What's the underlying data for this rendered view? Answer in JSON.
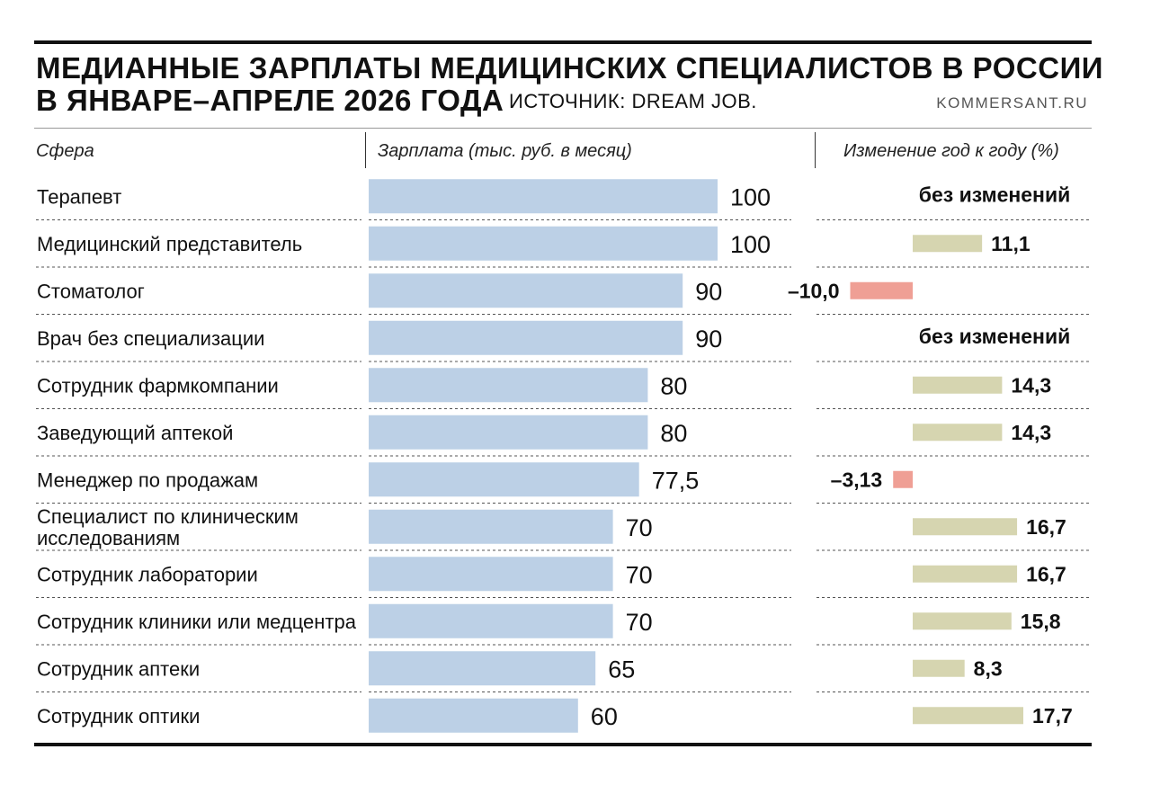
{
  "header": {
    "title_line1": "МЕДИАННЫЕ ЗАРПЛАТЫ МЕДИЦИНСКИХ СПЕЦИАЛИСТОВ В РОССИИ",
    "title_line2": "В ЯНВАРЕ–АПРЕЛЕ 2026 ГОДА",
    "source": "ИСТОЧНИК: DREAM JOB.",
    "brand": "KOMMERSANT.RU"
  },
  "columns": {
    "sphere": "Сфера",
    "salary": "Зарплата (тыс. руб. в месяц)",
    "change": "Изменение год к году (%)"
  },
  "colors": {
    "salary_bar": "#bcd0e6",
    "positive_change": "#d6d5b0",
    "negative_change": "#ef9f95",
    "row_divider": "#555555"
  },
  "chart_data": {
    "type": "bar",
    "orientation": "horizontal",
    "title": "МЕДИАННЫЕ ЗАРПЛАТЫ МЕДИЦИНСКИХ СПЕЦИАЛИСТОВ В РОССИИ В ЯНВАРЕ–АПРЕЛЕ 2026 ГОДА",
    "categories": [
      [
        "Терапевт"
      ],
      [
        "Медицинский представитель"
      ],
      [
        "Стоматолог"
      ],
      [
        "Врач без специализации"
      ],
      [
        "Сотрудник фармкомпании"
      ],
      [
        "Заведующий аптекой"
      ],
      [
        "Менеджер по продажам"
      ],
      [
        "Специалист по клиническим",
        "исследованиям"
      ],
      [
        "Сотрудник лаборатории"
      ],
      [
        "Сотрудник клиники или медцентра"
      ],
      [
        "Сотрудник аптеки"
      ],
      [
        "Сотрудник оптики"
      ]
    ],
    "series": [
      {
        "values": [
          100,
          100,
          90,
          90,
          80,
          80,
          77.5,
          70,
          70,
          70,
          65,
          60
        ],
        "value_labels": [
          "100",
          "100",
          "90",
          "90",
          "80",
          "80",
          "77,5",
          "70",
          "70",
          "70",
          "65",
          "60"
        ]
      },
      {
        "values": [
          0,
          11.1,
          -10.0,
          0,
          14.3,
          14.3,
          -3.13,
          16.7,
          16.7,
          15.8,
          8.3,
          17.7
        ],
        "value_labels": [
          "без изменений",
          "11,1",
          "–10,0",
          "без изменений",
          "14,3",
          "14,3",
          "–3,13",
          "16,7",
          "16,7",
          "15,8",
          "8,3",
          "17,7"
        ]
      }
    ],
    "xlim_salary": [
      0,
      100
    ],
    "grid": false,
    "legend": "none"
  }
}
